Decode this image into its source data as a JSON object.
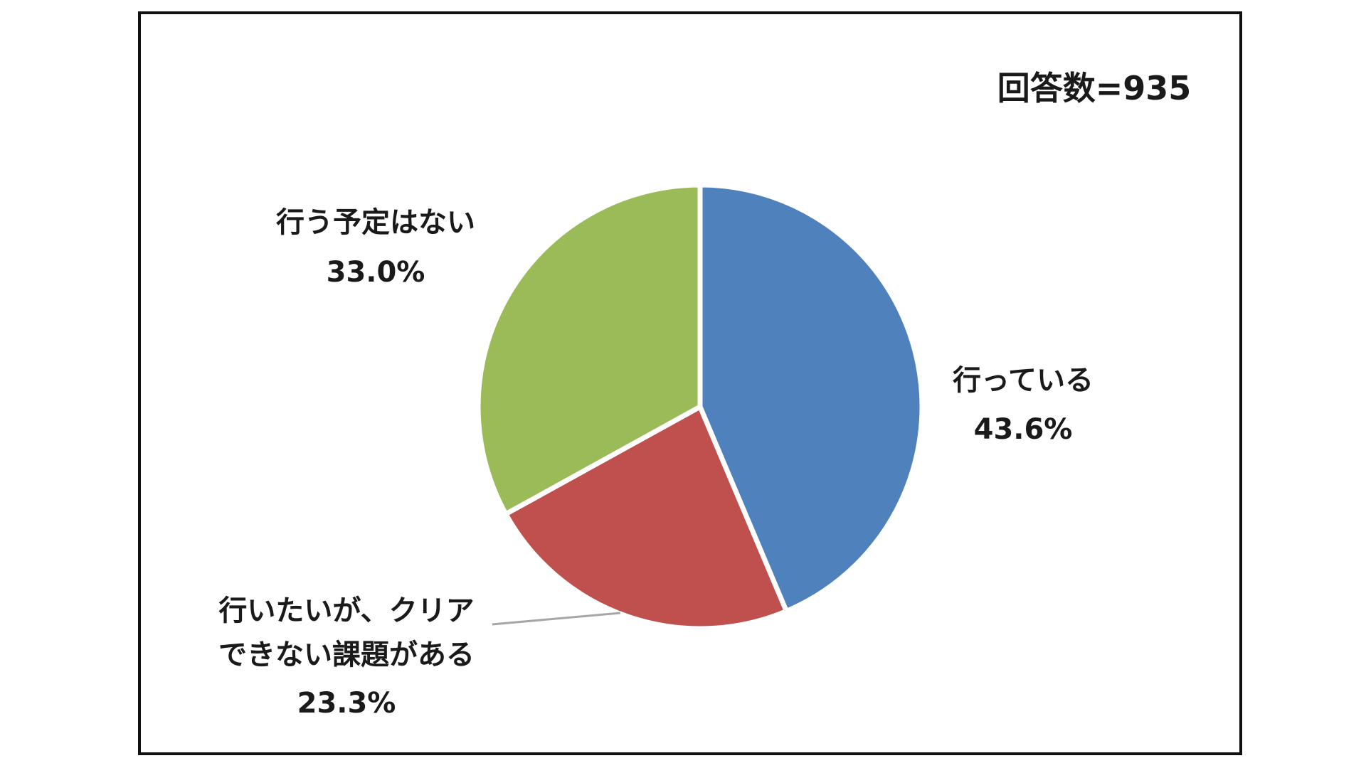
{
  "chart_data": {
    "type": "pie",
    "title": "",
    "annotation": "回答数=935",
    "slices": [
      {
        "name": "行っている",
        "value": 43.6,
        "label": "43.6%",
        "color": "#4F81BD"
      },
      {
        "name": "行いたいが、クリアできない課題がある",
        "label_lines": [
          "行いたいが、クリア",
          "できない課題がある"
        ],
        "value": 23.3,
        "label": "23.3%",
        "color": "#C0504D"
      },
      {
        "name": "行う予定はない",
        "value": 33.0,
        "label": "33.0%",
        "color": "#9BBB59"
      }
    ],
    "start_angle_deg": 0,
    "direction": "clockwise",
    "legend": "none"
  }
}
